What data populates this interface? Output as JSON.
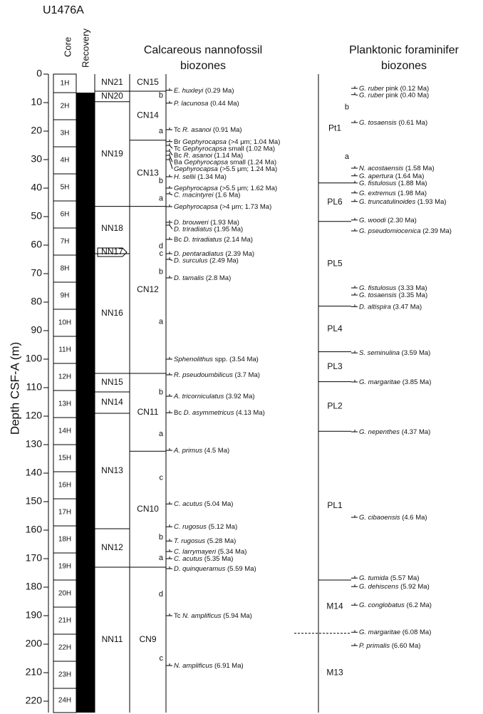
{
  "title": "U1476A",
  "depth_axis": {
    "label": "Depth CSF-A (m)",
    "ylim": [
      0,
      224
    ],
    "yticks": [
      0,
      10,
      20,
      30,
      40,
      50,
      60,
      70,
      80,
      90,
      100,
      110,
      120,
      130,
      140,
      150,
      160,
      170,
      180,
      190,
      200,
      210,
      220
    ]
  },
  "headers": {
    "core": "Core",
    "recovery": "Recovery",
    "nannofossil": [
      "Calcareous nannofossil",
      "biozones"
    ],
    "foraminifer": [
      "Planktonic foraminifer",
      "biozones"
    ]
  },
  "cores": [
    {
      "label": "1H",
      "top": 0,
      "bottom": 6.5
    },
    {
      "label": "2H",
      "top": 6.5,
      "bottom": 16
    },
    {
      "label": "3H",
      "top": 16,
      "bottom": 25.5
    },
    {
      "label": "4H",
      "top": 25.5,
      "bottom": 35
    },
    {
      "label": "5H",
      "top": 35,
      "bottom": 44.5
    },
    {
      "label": "6H",
      "top": 44.5,
      "bottom": 54
    },
    {
      "label": "7H",
      "top": 54,
      "bottom": 63.5
    },
    {
      "label": "8H",
      "top": 63.5,
      "bottom": 73
    },
    {
      "label": "9H",
      "top": 73,
      "bottom": 82.5
    },
    {
      "label": "10H",
      "top": 82.5,
      "bottom": 92
    },
    {
      "label": "11H",
      "top": 92,
      "bottom": 101.5
    },
    {
      "label": "12H",
      "top": 101.5,
      "bottom": 111
    },
    {
      "label": "13H",
      "top": 111,
      "bottom": 120.5
    },
    {
      "label": "14H",
      "top": 120.5,
      "bottom": 130
    },
    {
      "label": "15H",
      "top": 130,
      "bottom": 139.5
    },
    {
      "label": "16H",
      "top": 139.5,
      "bottom": 149
    },
    {
      "label": "17H",
      "top": 149,
      "bottom": 158.5
    },
    {
      "label": "18H",
      "top": 158.5,
      "bottom": 168
    },
    {
      "label": "19H",
      "top": 168,
      "bottom": 177.5
    },
    {
      "label": "20H",
      "top": 177.5,
      "bottom": 187
    },
    {
      "label": "21H",
      "top": 187,
      "bottom": 196.5
    },
    {
      "label": "22H",
      "top": 196.5,
      "bottom": 206
    },
    {
      "label": "23H",
      "top": 206,
      "bottom": 215.5
    },
    {
      "label": "24H",
      "top": 215.5,
      "bottom": 224
    }
  ],
  "recovery": [
    {
      "top": 6.5,
      "bottom": 224
    }
  ],
  "nn_zones": [
    {
      "label": "NN21",
      "top": 0,
      "bottom": 6
    },
    {
      "label": "NN20",
      "top": 6,
      "bottom": 9.7
    },
    {
      "label": "NN19",
      "top": 9.7,
      "bottom": 46.4
    },
    {
      "label": "NN18",
      "top": 46.4,
      "bottom": 62
    },
    {
      "label": "NN17",
      "top": 62,
      "bottom": 63
    },
    {
      "label": "NN16",
      "top": 63,
      "bottom": 105
    },
    {
      "label": "NN15",
      "top": 105,
      "bottom": 111.5
    },
    {
      "label": "NN14",
      "top": 111.5,
      "bottom": 119
    },
    {
      "label": "NN13",
      "top": 119,
      "bottom": 159.5
    },
    {
      "label": "NN12",
      "top": 159.5,
      "bottom": 173
    },
    {
      "label": "NN11",
      "top": 173,
      "bottom": 224
    }
  ],
  "cn_zones": [
    {
      "label": "CN15",
      "top": 0,
      "bottom": 6
    },
    {
      "label": "CN14",
      "top": 6,
      "bottom": 23.2
    },
    {
      "label": "CN13",
      "top": 23.2,
      "bottom": 46.4
    },
    {
      "label": "CN12",
      "top": 46.4,
      "bottom": 105
    },
    {
      "label": "CN11",
      "top": 105,
      "bottom": 132.3
    },
    {
      "label": "CN10",
      "top": 132.3,
      "bottom": 173
    },
    {
      "label": "CN9",
      "top": 173,
      "bottom": 224
    }
  ],
  "cn_subzones": [
    {
      "label": "b",
      "depth": 7.5
    },
    {
      "label": "a",
      "depth": 20
    },
    {
      "label": "b",
      "depth": 37.5
    },
    {
      "label": "a",
      "depth": 43.7
    },
    {
      "label": "d",
      "depth": 60.4
    },
    {
      "label": "c",
      "depth": 63
    },
    {
      "label": "b",
      "depth": 69.4
    },
    {
      "label": "a",
      "depth": 86.9
    },
    {
      "label": "b",
      "depth": 111.6
    },
    {
      "label": "a",
      "depth": 126.3
    },
    {
      "label": "c",
      "depth": 141.6
    },
    {
      "label": "b",
      "depth": 162.5
    },
    {
      "label": "a",
      "depth": 169.8
    },
    {
      "label": "d",
      "depth": 182.5
    },
    {
      "label": "c",
      "depth": 205
    }
  ],
  "nanno_events": [
    {
      "taxon": "E. huxleyi",
      "detail": "(0.29 Ma)",
      "depth": 5.7
    },
    {
      "taxon": "P. lacunosa",
      "detail": "(0.44 Ma)",
      "depth": 10.2
    },
    {
      "prefix": "Tc",
      "taxon": "R. asanoi",
      "detail": "(0.91 Ma)",
      "depth": 19.5
    },
    {
      "prefix": "Br",
      "taxon": "Gephyrocapsa",
      "detail": "(>4 μm; 1.04 Ma)",
      "depth": 23.7
    },
    {
      "prefix": "Tc",
      "taxon": "Gephyrocapsa",
      "detail": "small (1.02 Ma)",
      "depth": 25
    },
    {
      "prefix": "Bc",
      "taxon": "R. asanoi",
      "detail": "(1.14 Ma)",
      "depth": 27
    },
    {
      "prefix": "Ba",
      "taxon": "Gephyrocapsa",
      "detail": "small (1.24 Ma)",
      "depth": 28.5
    },
    {
      "taxon": "Gephyrocapsa",
      "detail": "(>5.5 μm; 1.24 Ma)",
      "depth": 30
    },
    {
      "taxon": "H. sellii",
      "detail": "(1.34 Ma)",
      "depth": 36
    },
    {
      "taxon": "Gephyrocapsa",
      "detail": "(>5.5 μm; 1.62 Ma)",
      "depth": 40
    },
    {
      "taxon": "C. macintyrei",
      "detail": "(1.6 Ma)",
      "depth": 42
    },
    {
      "taxon": "Gephyrocapsa",
      "detail": "(>4 μm; 1.73 Ma)",
      "depth": 46.5
    },
    {
      "taxon": "D. brouweri",
      "detail": "(1.93 Ma)",
      "depth": 52
    },
    {
      "taxon": "D. triradiatus",
      "detail": "(1.95 Ma)",
      "depth": 53
    },
    {
      "prefix": "Bc",
      "taxon": "D. triradiatus",
      "detail": "(2.14 Ma)",
      "depth": 58
    },
    {
      "taxon": "D. pentaradiatus",
      "detail": "(2.39 Ma)",
      "depth": 63
    },
    {
      "taxon": "D. surculus",
      "detail": "(2.49 Ma)",
      "depth": 65
    },
    {
      "taxon": "D. tamalis",
      "detail": "(2.8 Ma)",
      "depth": 71.5
    },
    {
      "taxon": "Sphenolithus",
      "detail": "spp. (3.54 Ma)",
      "depth": 100
    },
    {
      "taxon": "R. pseudoumbilicus",
      "detail": "(3.7 Ma)",
      "depth": 105.5
    },
    {
      "taxon": "A. tricorniculatus",
      "detail": "(3.92 Ma)",
      "depth": 113
    },
    {
      "prefix": "Bc",
      "taxon": "D. asymmetricus",
      "detail": "(4.13 Ma)",
      "depth": 118.8
    },
    {
      "taxon": "A. primus",
      "detail": "(4.5 Ma)",
      "depth": 132
    },
    {
      "taxon": "C. acutus",
      "detail": "(5.04 Ma)",
      "depth": 150.8
    },
    {
      "taxon": "C. rugosus",
      "detail": "(5.12 Ma)",
      "depth": 158.8
    },
    {
      "taxon": "T. rugosus",
      "detail": "(5.28 Ma)",
      "depth": 163.8
    },
    {
      "taxon": "C. larrymayeri",
      "detail": "(5.34 Ma)",
      "depth": 167.5
    },
    {
      "taxon": "C. acutus",
      "detail": "(5.35 Ma)",
      "depth": 170
    },
    {
      "taxon": "D. quinqueramus",
      "detail": "(5.59 Ma)",
      "depth": 173.5
    },
    {
      "prefix": "Tc",
      "taxon": "N. amplificus",
      "detail": "(5.94 Ma)",
      "depth": 190
    },
    {
      "taxon": "N. amplificus",
      "detail": "(6.91 Ma)",
      "depth": 207.5
    }
  ],
  "foram_zones": [
    {
      "label": "Pt1",
      "top": 0,
      "bottom": 38.2
    },
    {
      "label": "PL6",
      "top": 38.2,
      "bottom": 51.7
    },
    {
      "label": "PL5",
      "top": 51.7,
      "bottom": 81.4
    },
    {
      "label": "PL4",
      "top": 81.4,
      "bottom": 97.4
    },
    {
      "label": "PL3",
      "top": 97.4,
      "bottom": 107.9
    },
    {
      "label": "PL2",
      "top": 107.9,
      "bottom": 125.3
    },
    {
      "label": "PL1",
      "top": 125.3,
      "bottom": 177.5
    },
    {
      "label": "M14",
      "top": 177.5,
      "bottom": 196.2
    },
    {
      "label": "M13",
      "top": 196.2,
      "bottom": 224,
      "dashed": true
    }
  ],
  "foram_subzones": [
    {
      "label": "b",
      "depth": 11.7
    },
    {
      "label": "a",
      "depth": 29
    }
  ],
  "foram_events": [
    {
      "taxon": "G. ruber",
      "detail": "pink (0.12 Ma)",
      "depth": 5
    },
    {
      "taxon": "G. ruber",
      "detail": "pink (0.40 Ma)",
      "depth": 7.2
    },
    {
      "taxon": "G. tosaensis",
      "detail": "(0.61 Ma)",
      "depth": 17
    },
    {
      "taxon": "N. acostaensis",
      "detail": "(1.58 Ma)",
      "depth": 33
    },
    {
      "taxon": "G. apertura",
      "detail": "(1.64 Ma)",
      "depth": 35.7
    },
    {
      "taxon": "G. fistulosus",
      "detail": "(1.88 Ma)",
      "depth": 38.2
    },
    {
      "taxon": "G. extremus",
      "detail": "(1.98 Ma)",
      "depth": 41.7
    },
    {
      "taxon": "G. truncatulinoides",
      "detail": "(1.93 Ma)",
      "depth": 44.7
    },
    {
      "taxon": "G. woodi",
      "detail": "(2.30 Ma)",
      "depth": 51.2
    },
    {
      "taxon": "G. pseudomiocenica",
      "detail": "(2.39 Ma)",
      "depth": 55
    },
    {
      "taxon": "G. fistulosus",
      "detail": "(3.33 Ma)",
      "depth": 75
    },
    {
      "taxon": "G. tosaensis",
      "detail": "(3.35 Ma)",
      "depth": 77.5
    },
    {
      "taxon": "D. altispira",
      "detail": "(3.47 Ma)",
      "depth": 81.6
    },
    {
      "taxon": "S. seminulina",
      "detail": "(3.59 Ma)",
      "depth": 97.8
    },
    {
      "taxon": "G. margaritae",
      "detail": "(3.85 Ma)",
      "depth": 108
    },
    {
      "taxon": "G. nepenthes",
      "detail": "(4.37 Ma)",
      "depth": 125.5
    },
    {
      "taxon": "G. cibaoensis",
      "detail": "(4.6 Ma)",
      "depth": 155.5
    },
    {
      "taxon": "G. tumida",
      "detail": "(5.57 Ma)",
      "depth": 176.8
    },
    {
      "taxon": "G. dehiscens",
      "detail": "(5.92 Ma)",
      "depth": 179.8
    },
    {
      "taxon": "G. conglobatus",
      "detail": "(6.2 Ma)",
      "depth": 186.3
    },
    {
      "taxon": "G. margaritae",
      "detail": "(6.08 Ma)",
      "depth": 195.8
    },
    {
      "taxon": "P. primalis",
      "detail": "(6.60 Ma)",
      "depth": 200.5
    }
  ]
}
